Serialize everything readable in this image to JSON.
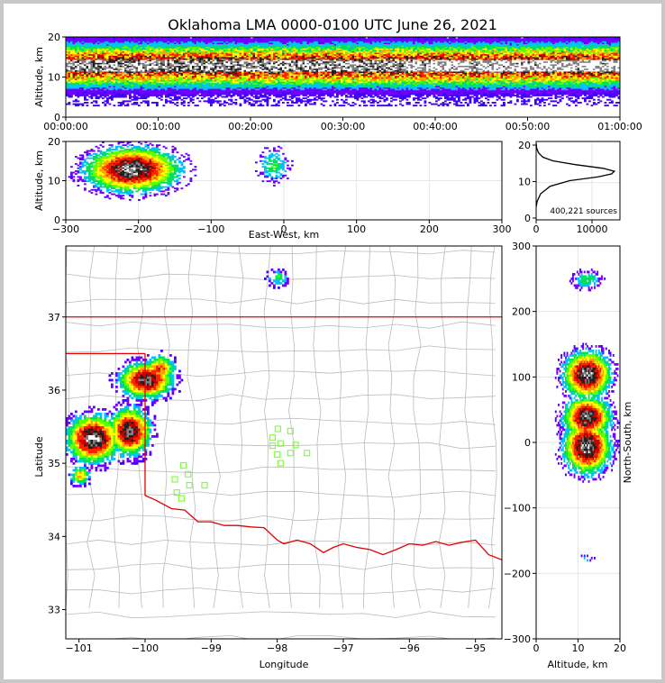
{
  "title": "Oklahoma LMA 0000-0100 UTC June 26, 2021",
  "colors": {
    "scale": [
      "#4000ff",
      "#7000ff",
      "#00c0ff",
      "#00e060",
      "#60ff00",
      "#ffff00",
      "#ffa000",
      "#ff2000",
      "#c00000",
      "#202020",
      "#808080",
      "#ffffff"
    ],
    "state_border": "#e00000",
    "county_border": "#bbbbbb",
    "station": "#80ff40"
  },
  "panels": {
    "time_alt": {
      "ylabel": "Altitude, km",
      "yticks": [
        "0",
        "10",
        "20"
      ],
      "xticks": [
        "00:00:00",
        "00:10:00",
        "00:20:00",
        "00:30:00",
        "00:40:00",
        "00:50:00",
        "01:00:00"
      ]
    },
    "ew_alt": {
      "ylabel": "Altitude, km",
      "xlabel": "East-West, km",
      "xticks": [
        "−300",
        "−200",
        "−100",
        "0",
        "100",
        "200",
        "300"
      ],
      "yticks": [
        "0",
        "10",
        "20"
      ]
    },
    "hist": {
      "xticks": [
        "0",
        "10000"
      ],
      "yticks": [
        "0",
        "10",
        "20"
      ],
      "annotation": "400,221 sources"
    },
    "map": {
      "xlabel": "Longitude",
      "ylabel": "Latitude",
      "xticks": [
        "−101",
        "−100",
        "−99",
        "−98",
        "−97",
        "−96",
        "−95"
      ],
      "yticks": [
        "33",
        "34",
        "35",
        "36",
        "37"
      ]
    },
    "ns_alt": {
      "xlabel": "Altitude, km",
      "ylabel": "North-South, km",
      "xticks": [
        "0",
        "10",
        "20"
      ],
      "yticks": [
        "−300",
        "−200",
        "−100",
        "0",
        "100",
        "200",
        "300"
      ]
    }
  },
  "chart_data": [
    {
      "type": "heatmap",
      "panel": "time_alt",
      "xlabel": "",
      "ylabel": "Altitude, km",
      "xlim": [
        0,
        3600
      ],
      "ylim": [
        0,
        20
      ],
      "band_center_km": 13,
      "band_core_halfwidth_km": [
        1.5,
        2.0
      ],
      "band_outer_extent_km": [
        3,
        20
      ]
    },
    {
      "type": "heatmap",
      "panel": "ew_alt",
      "xlabel": "East-West, km",
      "ylabel": "Altitude, km",
      "xlim": [
        -300,
        300
      ],
      "ylim": [
        0,
        20
      ],
      "clusters": [
        {
          "x": -210,
          "z": 13,
          "sx": 40,
          "sz": 3.5,
          "peak": 1.0
        },
        {
          "x": -15,
          "z": 14,
          "sx": 15,
          "sz": 3,
          "peak": 0.35
        }
      ]
    },
    {
      "type": "line",
      "panel": "hist",
      "xlabel": "",
      "ylabel": "",
      "xlim": [
        0,
        15000
      ],
      "ylim": [
        0,
        21
      ],
      "x": [
        0,
        200,
        800,
        2500,
        6000,
        11000,
        13500,
        14000,
        12000,
        7000,
        3000,
        1200,
        400,
        100,
        0
      ],
      "y": [
        3.5,
        5,
        7,
        9,
        10.5,
        11.5,
        12.3,
        13,
        13.8,
        14.8,
        15.8,
        16.8,
        18,
        19.2,
        20.5
      ]
    },
    {
      "type": "heatmap",
      "panel": "map",
      "xlabel": "Longitude",
      "ylabel": "Latitude",
      "xlim": [
        -101.2,
        -94.6
      ],
      "ylim": [
        32.6,
        37.97
      ],
      "clusters": [
        {
          "lon": -100.8,
          "lat": 35.35,
          "slon": 0.25,
          "slat": 0.2,
          "peak": 1.0
        },
        {
          "lon": -100.25,
          "lat": 35.45,
          "slon": 0.2,
          "slat": 0.2,
          "peak": 0.95
        },
        {
          "lon": -100.0,
          "lat": 36.15,
          "slon": 0.25,
          "slat": 0.15,
          "peak": 0.95
        },
        {
          "lon": -99.8,
          "lat": 36.3,
          "slon": 0.15,
          "slat": 0.12,
          "peak": 0.7
        },
        {
          "lon": -101.0,
          "lat": 34.85,
          "slon": 0.1,
          "slat": 0.08,
          "peak": 0.6
        },
        {
          "lon": -98.0,
          "lat": 37.55,
          "slon": 0.12,
          "slat": 0.08,
          "peak": 0.35
        }
      ],
      "stations": [
        [
          -97.99,
          35.47
        ],
        [
          -97.8,
          35.44
        ],
        [
          -98.07,
          35.35
        ],
        [
          -97.95,
          35.27
        ],
        [
          -98.07,
          35.24
        ],
        [
          -97.72,
          35.25
        ],
        [
          -97.8,
          35.14
        ],
        [
          -98.0,
          35.12
        ],
        [
          -97.55,
          35.14
        ],
        [
          -97.95,
          35.0
        ],
        [
          -99.42,
          34.97
        ],
        [
          -99.35,
          34.85
        ],
        [
          -99.55,
          34.78
        ],
        [
          -99.33,
          34.7
        ],
        [
          -99.1,
          34.7
        ],
        [
          -99.52,
          34.6
        ],
        [
          -99.45,
          34.52
        ]
      ]
    },
    {
      "type": "heatmap",
      "panel": "ns_alt",
      "xlabel": "Altitude, km",
      "ylabel": "North-South, km",
      "xlim": [
        0,
        20
      ],
      "ylim": [
        -300,
        300
      ],
      "clusters": [
        {
          "z": 12,
          "y": 105,
          "sz": 3.5,
          "sy": 22,
          "peak": 1.0
        },
        {
          "z": 12,
          "y": 40,
          "sz": 3.5,
          "sy": 20,
          "peak": 0.95
        },
        {
          "z": 12,
          "y": -5,
          "sz": 3.5,
          "sy": 25,
          "peak": 1.0
        },
        {
          "z": 12,
          "y": 250,
          "sz": 2.5,
          "sy": 10,
          "peak": 0.35
        },
        {
          "z": 12,
          "y": -175,
          "sz": 1.2,
          "sy": 4,
          "peak": 0.25
        }
      ]
    }
  ]
}
